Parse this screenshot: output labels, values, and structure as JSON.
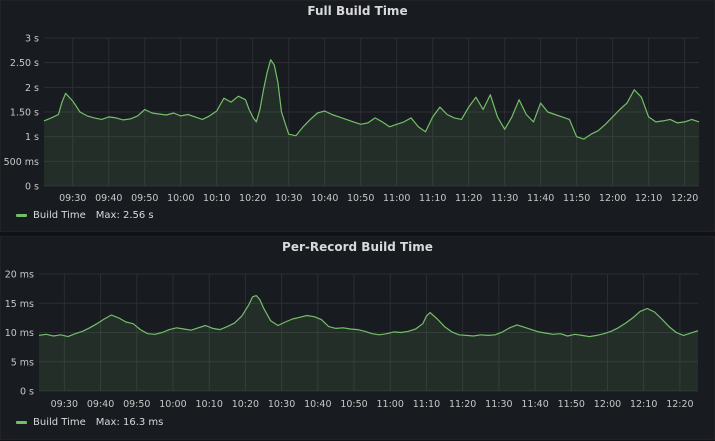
{
  "panels": [
    {
      "title": "Full Build Time",
      "legend": {
        "series_name": "Build Time",
        "max_label": "Max: 2.56 s"
      },
      "colors": {
        "line": "#73bf69",
        "fill": "rgba(115,191,105,0.12)",
        "grid": "#2c2e33"
      }
    },
    {
      "title": "Per-Record Build Time",
      "legend": {
        "series_name": "Build Time",
        "max_label": "Max: 16.3 ms"
      },
      "colors": {
        "line": "#73bf69",
        "fill": "rgba(115,191,105,0.12)",
        "grid": "#2c2e33"
      }
    }
  ],
  "chart_data": [
    {
      "type": "area",
      "title": "Full Build Time",
      "xlabel": "",
      "ylabel": "",
      "x_ticks": [
        "09:30",
        "09:40",
        "09:50",
        "10:00",
        "10:10",
        "10:20",
        "10:30",
        "10:40",
        "10:50",
        "11:00",
        "11:10",
        "11:20",
        "11:30",
        "11:40",
        "11:50",
        "12:00",
        "12:10",
        "12:20"
      ],
      "x_range": [
        "09:22",
        "12:24"
      ],
      "y_ticks": [
        {
          "value": 0,
          "label": "0 s"
        },
        {
          "value": 0.5,
          "label": "500 ms"
        },
        {
          "value": 1,
          "label": "1 s"
        },
        {
          "value": 1.5,
          "label": "1.50 s"
        },
        {
          "value": 2,
          "label": "2 s"
        },
        {
          "value": 2.5,
          "label": "2.50 s"
        },
        {
          "value": 3,
          "label": "3 s"
        }
      ],
      "ylim": [
        0,
        3
      ],
      "grid": true,
      "legend_position": "bottom-left",
      "series": [
        {
          "name": "Build Time",
          "unit": "s",
          "x": [
            "09:22",
            "09:24",
            "09:26",
            "09:27",
            "09:28",
            "09:30",
            "09:32",
            "09:34",
            "09:36",
            "09:38",
            "09:40",
            "09:42",
            "09:44",
            "09:46",
            "09:48",
            "09:50",
            "09:52",
            "09:54",
            "09:56",
            "09:58",
            "10:00",
            "10:02",
            "10:04",
            "10:06",
            "10:08",
            "10:10",
            "10:12",
            "10:14",
            "10:16",
            "10:18",
            "10:19",
            "10:20",
            "10:21",
            "10:22",
            "10:23",
            "10:24",
            "10:25",
            "10:26",
            "10:27",
            "10:28",
            "10:30",
            "10:32",
            "10:34",
            "10:36",
            "10:38",
            "10:40",
            "10:42",
            "10:44",
            "10:46",
            "10:48",
            "10:50",
            "10:52",
            "10:54",
            "10:56",
            "10:58",
            "11:00",
            "11:02",
            "11:04",
            "11:06",
            "11:08",
            "11:10",
            "11:12",
            "11:14",
            "11:16",
            "11:18",
            "11:20",
            "11:22",
            "11:24",
            "11:26",
            "11:28",
            "11:30",
            "11:32",
            "11:34",
            "11:36",
            "11:38",
            "11:40",
            "11:42",
            "11:44",
            "11:46",
            "11:48",
            "11:50",
            "11:52",
            "11:54",
            "11:56",
            "11:58",
            "12:00",
            "12:02",
            "12:04",
            "12:06",
            "12:08",
            "12:10",
            "12:12",
            "12:14",
            "12:16",
            "12:18",
            "12:20",
            "12:22",
            "12:24"
          ],
          "y": [
            1.32,
            1.38,
            1.45,
            1.7,
            1.88,
            1.72,
            1.5,
            1.42,
            1.38,
            1.35,
            1.4,
            1.38,
            1.34,
            1.36,
            1.42,
            1.55,
            1.48,
            1.46,
            1.44,
            1.48,
            1.42,
            1.45,
            1.4,
            1.35,
            1.42,
            1.52,
            1.78,
            1.7,
            1.82,
            1.75,
            1.55,
            1.4,
            1.3,
            1.55,
            1.95,
            2.3,
            2.56,
            2.45,
            2.1,
            1.5,
            1.05,
            1.02,
            1.2,
            1.35,
            1.48,
            1.52,
            1.45,
            1.4,
            1.35,
            1.3,
            1.25,
            1.28,
            1.38,
            1.3,
            1.2,
            1.25,
            1.3,
            1.38,
            1.2,
            1.1,
            1.4,
            1.6,
            1.45,
            1.38,
            1.35,
            1.6,
            1.8,
            1.55,
            1.85,
            1.4,
            1.15,
            1.4,
            1.75,
            1.45,
            1.3,
            1.68,
            1.5,
            1.45,
            1.4,
            1.35,
            1.0,
            0.95,
            1.05,
            1.12,
            1.25,
            1.4,
            1.55,
            1.68,
            1.95,
            1.8,
            1.4,
            1.3,
            1.32,
            1.35,
            1.28,
            1.3,
            1.35,
            1.3
          ]
        }
      ]
    },
    {
      "type": "area",
      "title": "Per-Record Build Time",
      "xlabel": "",
      "ylabel": "",
      "x_ticks": [
        "09:30",
        "09:40",
        "09:50",
        "10:00",
        "10:10",
        "10:20",
        "10:30",
        "10:40",
        "10:50",
        "11:00",
        "11:10",
        "11:20",
        "11:30",
        "11:40",
        "11:50",
        "12:00",
        "12:10",
        "12:20"
      ],
      "x_range": [
        "09:23",
        "12:25"
      ],
      "y_ticks": [
        {
          "value": 0,
          "label": "0 s"
        },
        {
          "value": 5,
          "label": "5 ms"
        },
        {
          "value": 10,
          "label": "10 ms"
        },
        {
          "value": 15,
          "label": "15 ms"
        },
        {
          "value": 20,
          "label": "20 ms"
        }
      ],
      "ylim": [
        0,
        20
      ],
      "grid": true,
      "legend_position": "bottom-left",
      "series": [
        {
          "name": "Build Time",
          "unit": "ms",
          "x": [
            "09:23",
            "09:25",
            "09:27",
            "09:29",
            "09:31",
            "09:33",
            "09:35",
            "09:37",
            "09:39",
            "09:41",
            "09:43",
            "09:45",
            "09:47",
            "09:49",
            "09:51",
            "09:53",
            "09:55",
            "09:57",
            "09:59",
            "10:01",
            "10:03",
            "10:05",
            "10:07",
            "10:09",
            "10:11",
            "10:13",
            "10:15",
            "10:17",
            "10:19",
            "10:21",
            "10:22",
            "10:23",
            "10:24",
            "10:25",
            "10:27",
            "10:29",
            "10:31",
            "10:33",
            "10:35",
            "10:37",
            "10:39",
            "10:41",
            "10:43",
            "10:45",
            "10:47",
            "10:49",
            "10:51",
            "10:53",
            "10:55",
            "10:57",
            "10:59",
            "11:01",
            "11:03",
            "11:05",
            "11:07",
            "11:09",
            "11:10",
            "11:11",
            "11:13",
            "11:15",
            "11:17",
            "11:19",
            "11:21",
            "11:23",
            "11:25",
            "11:27",
            "11:29",
            "11:31",
            "11:33",
            "11:35",
            "11:37",
            "11:39",
            "11:41",
            "11:43",
            "11:45",
            "11:47",
            "11:49",
            "11:51",
            "11:53",
            "11:55",
            "11:57",
            "11:59",
            "12:01",
            "12:03",
            "12:05",
            "12:07",
            "12:09",
            "12:11",
            "12:13",
            "12:15",
            "12:17",
            "12:19",
            "12:21",
            "12:23",
            "12:25"
          ],
          "y": [
            9.5,
            9.7,
            9.4,
            9.6,
            9.3,
            9.8,
            10.2,
            10.8,
            11.5,
            12.3,
            13.0,
            12.5,
            11.8,
            11.5,
            10.5,
            9.8,
            9.7,
            10.0,
            10.5,
            10.8,
            10.6,
            10.4,
            10.8,
            11.2,
            10.7,
            10.5,
            11.0,
            11.6,
            12.8,
            14.8,
            16.1,
            16.3,
            15.6,
            14.2,
            12.0,
            11.2,
            11.8,
            12.3,
            12.6,
            12.9,
            12.7,
            12.2,
            11.0,
            10.7,
            10.8,
            10.6,
            10.5,
            10.2,
            9.8,
            9.6,
            9.8,
            10.1,
            10.0,
            10.2,
            10.6,
            11.5,
            12.8,
            13.4,
            12.3,
            11.0,
            10.1,
            9.6,
            9.5,
            9.4,
            9.6,
            9.5,
            9.6,
            10.1,
            10.8,
            11.3,
            10.9,
            10.5,
            10.1,
            9.9,
            9.7,
            9.8,
            9.4,
            9.7,
            9.5,
            9.3,
            9.5,
            9.8,
            10.2,
            10.8,
            11.6,
            12.5,
            13.6,
            14.1,
            13.5,
            12.3,
            11.0,
            10.0,
            9.5,
            9.9,
            10.3
          ]
        }
      ]
    }
  ]
}
